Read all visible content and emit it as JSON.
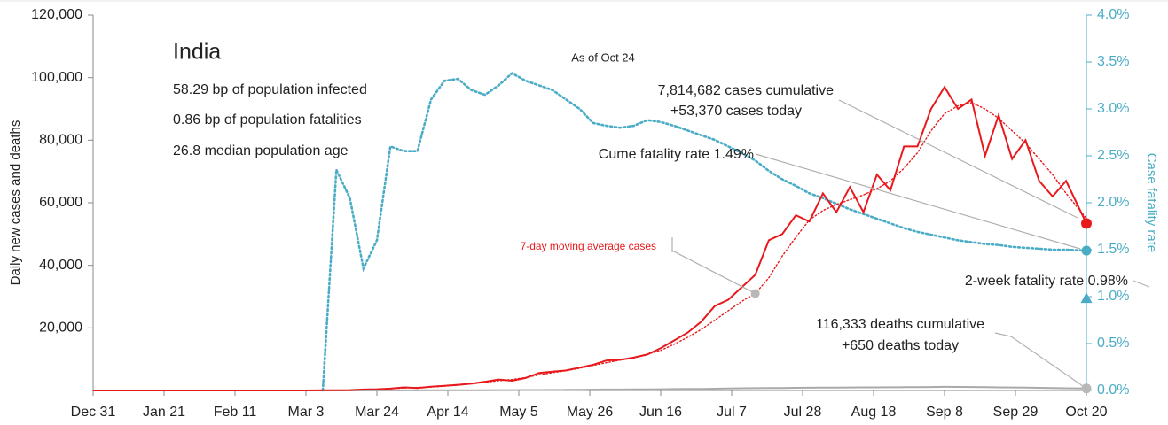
{
  "chart_data": {
    "type": "line",
    "title": "India",
    "subtitle": "As of Oct 24",
    "stats": [
      "58.29 bp of population infected",
      "0.86 bp of population fatalities",
      "26.8 median population age"
    ],
    "ylabel": "Daily new cases and deaths",
    "y2label": "Case fatality rate",
    "annotations": [
      "7,814,682 cases cumulative",
      "+53,370 cases today",
      "Cume fatality rate 1.49%",
      "7-day moving average cases",
      "2-week fatality rate 0.98%",
      "116,333 deaths cumulative",
      "+650 deaths today"
    ],
    "two_week_fatality_rate": 0.98,
    "xlim": [
      0,
      294
    ],
    "xticks": [
      {
        "value": 0,
        "label": "Dec 31"
      },
      {
        "value": 21,
        "label": "Jan 21"
      },
      {
        "value": 42,
        "label": "Feb 11"
      },
      {
        "value": 63,
        "label": "Mar 3"
      },
      {
        "value": 84,
        "label": "Mar 24"
      },
      {
        "value": 105,
        "label": "Apr 14"
      },
      {
        "value": 126,
        "label": "May 5"
      },
      {
        "value": 147,
        "label": "May 26"
      },
      {
        "value": 168,
        "label": "Jun 16"
      },
      {
        "value": 189,
        "label": "Jul 7"
      },
      {
        "value": 210,
        "label": "Jul 28"
      },
      {
        "value": 231,
        "label": "Aug 18"
      },
      {
        "value": 252,
        "label": "Sep 8"
      },
      {
        "value": 273,
        "label": "Sep 29"
      },
      {
        "value": 294,
        "label": "Oct 20"
      }
    ],
    "ylim": [
      0,
      120000
    ],
    "yticks": [
      {
        "value": 20000,
        "label": "20,000"
      },
      {
        "value": 40000,
        "label": "40,000"
      },
      {
        "value": 60000,
        "label": "60,000"
      },
      {
        "value": 80000,
        "label": "80,000"
      },
      {
        "value": 100000,
        "label": "100,000"
      },
      {
        "value": 120000,
        "label": "120,000"
      }
    ],
    "y2lim": [
      0,
      4
    ],
    "y2ticks": [
      {
        "value": 0,
        "label": "0.0%"
      },
      {
        "value": 0.5,
        "label": "0.5%"
      },
      {
        "value": 1,
        "label": "1.0%"
      },
      {
        "value": 1.5,
        "label": "1.5%"
      },
      {
        "value": 2,
        "label": "2.0%"
      },
      {
        "value": 2.5,
        "label": "2.5%"
      },
      {
        "value": 3,
        "label": "3.0%"
      },
      {
        "value": 3.5,
        "label": "3.5%"
      },
      {
        "value": 4,
        "label": "4.0%"
      }
    ],
    "x": [
      0,
      7,
      14,
      21,
      28,
      35,
      42,
      49,
      56,
      63,
      68,
      72,
      76,
      80,
      84,
      88,
      92,
      96,
      100,
      104,
      108,
      112,
      116,
      120,
      124,
      128,
      132,
      136,
      140,
      144,
      148,
      152,
      156,
      160,
      164,
      168,
      172,
      176,
      180,
      184,
      188,
      192,
      196,
      200,
      204,
      208,
      212,
      216,
      220,
      224,
      228,
      232,
      236,
      240,
      244,
      248,
      252,
      256,
      260,
      264,
      268,
      272,
      276,
      280,
      284,
      288,
      294
    ],
    "series": [
      {
        "color": "#e8191c",
        "style": "solid",
        "values": [
          0,
          0,
          0,
          0,
          0,
          0,
          0,
          0,
          0,
          10,
          50,
          90,
          100,
          300,
          400,
          600,
          1000,
          800,
          1200,
          1500,
          1800,
          2200,
          2800,
          3500,
          3100,
          4000,
          5600,
          6000,
          6400,
          7300,
          8200,
          9600,
          9800,
          10500,
          11500,
          13500,
          16000,
          18500,
          22000,
          27000,
          29000,
          33000,
          37000,
          48000,
          50000,
          56000,
          54000,
          63000,
          57000,
          65000,
          57000,
          69000,
          64000,
          78000,
          78000,
          90000,
          97000,
          90000,
          93000,
          75000,
          88000,
          74000,
          80000,
          67000,
          62000,
          67000,
          53370
        ]
      },
      {
        "color": "#e8191c",
        "style": "dotted",
        "values": [
          0,
          0,
          0,
          0,
          0,
          0,
          0,
          0,
          0,
          5,
          40,
          80,
          150,
          250,
          400,
          550,
          800,
          950,
          1100,
          1400,
          1700,
          2100,
          2600,
          3100,
          3500,
          4100,
          5000,
          5700,
          6300,
          7100,
          8000,
          8900,
          9700,
          10400,
          11600,
          12800,
          14800,
          17000,
          19500,
          22500,
          25500,
          28500,
          31000,
          36000,
          43000,
          49000,
          54500,
          57500,
          59500,
          61000,
          62500,
          64500,
          67000,
          71000,
          76000,
          83000,
          88500,
          91000,
          92000,
          90000,
          87000,
          83000,
          79000,
          74000,
          69000,
          63000,
          55000
        ]
      },
      {
        "color": "#4bacc6",
        "style": "dotted",
        "axis": "y2",
        "values": [
          null,
          null,
          null,
          null,
          null,
          null,
          null,
          null,
          null,
          null,
          0,
          2.35,
          2.05,
          1.3,
          1.6,
          2.6,
          2.55,
          2.55,
          3.1,
          3.3,
          3.32,
          3.2,
          3.15,
          3.25,
          3.38,
          3.3,
          3.25,
          3.2,
          3.1,
          3.0,
          2.85,
          2.82,
          2.8,
          2.82,
          2.88,
          2.86,
          2.82,
          2.77,
          2.72,
          2.67,
          2.6,
          2.53,
          2.45,
          2.34,
          2.25,
          2.18,
          2.1,
          2.05,
          1.99,
          1.93,
          1.88,
          1.83,
          1.78,
          1.73,
          1.69,
          1.66,
          1.63,
          1.6,
          1.58,
          1.56,
          1.55,
          1.53,
          1.52,
          1.51,
          1.5,
          1.5,
          1.49
        ]
      },
      {
        "color": "#aaaaaa",
        "style": "solid",
        "values": [
          0,
          0,
          0,
          0,
          0,
          0,
          0,
          0,
          0,
          0,
          2,
          4,
          6,
          10,
          20,
          30,
          40,
          40,
          50,
          60,
          70,
          80,
          90,
          100,
          110,
          130,
          150,
          180,
          200,
          230,
          270,
          300,
          320,
          350,
          380,
          400,
          450,
          480,
          500,
          580,
          650,
          700,
          750,
          780,
          800,
          850,
          880,
          900,
          920,
          950,
          980,
          1000,
          1030,
          1050,
          1080,
          1100,
          1150,
          1120,
          1100,
          1050,
          1000,
          950,
          900,
          850,
          800,
          700,
          650
        ]
      }
    ]
  }
}
